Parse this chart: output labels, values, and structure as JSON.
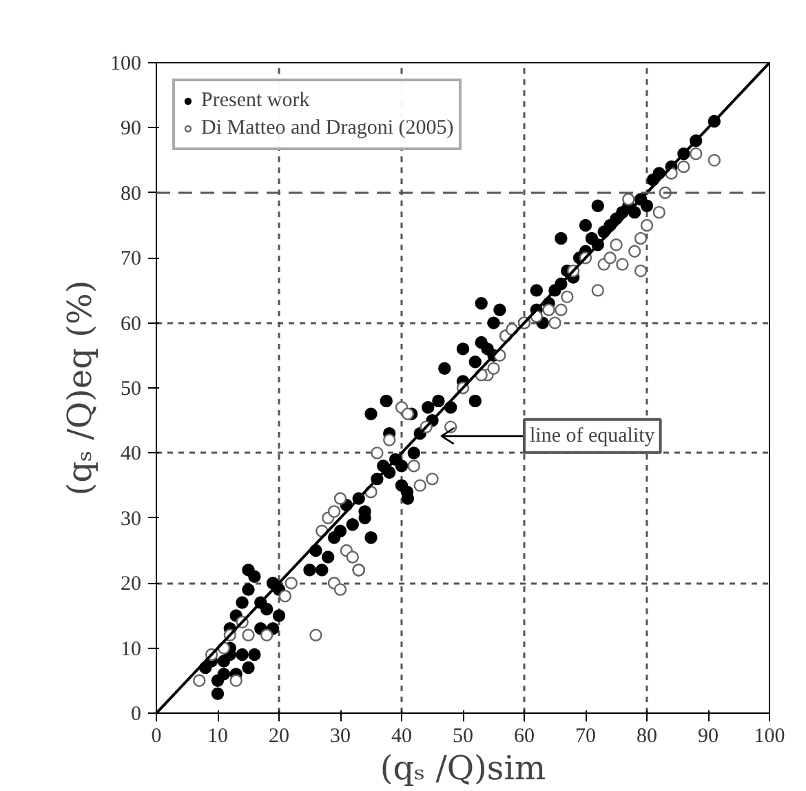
{
  "chart_data": {
    "type": "scatter",
    "xlabel": "(qₛ /Q)sim",
    "ylabel": "(qₛ /Q)eq (%)",
    "xlim": [
      0,
      100
    ],
    "ylim": [
      0,
      100
    ],
    "xticks": [
      0,
      10,
      20,
      30,
      40,
      50,
      60,
      70,
      80,
      90,
      100
    ],
    "yticks": [
      0,
      10,
      20,
      30,
      40,
      50,
      60,
      70,
      80,
      90,
      100
    ],
    "grid": true,
    "legend": "top left",
    "marker": "circle",
    "series": [
      {
        "name": "Present work",
        "color": "#000000",
        "x": [
          8,
          9,
          10,
          10,
          11,
          12,
          13,
          14,
          15,
          16,
          12,
          13,
          14,
          15,
          16,
          17,
          18,
          19,
          20,
          20,
          17,
          19,
          12,
          11,
          15,
          25,
          26,
          27,
          28,
          29,
          30,
          31,
          32,
          33,
          34,
          35,
          33,
          34,
          36,
          37,
          38,
          39,
          40,
          40,
          41,
          42,
          35,
          38,
          43,
          45,
          46,
          48,
          50,
          52,
          53,
          54,
          55,
          55,
          53,
          56,
          57,
          52,
          50,
          47,
          37.5,
          41.6,
          44.3,
          40.9,
          60,
          62,
          64,
          65,
          66,
          67,
          68,
          69,
          70,
          71,
          72,
          73,
          74,
          75,
          76,
          77,
          78,
          79,
          80,
          66,
          72,
          81,
          82,
          84,
          86,
          88,
          91,
          70,
          63,
          62
        ],
        "values": [
          7,
          8,
          5,
          3,
          6,
          9,
          6,
          9,
          7,
          9,
          13,
          15,
          17,
          19,
          21,
          17,
          16,
          20,
          19,
          15,
          13,
          13,
          10,
          8,
          22,
          22,
          25,
          22,
          24,
          27,
          28,
          32,
          29,
          33,
          31,
          27,
          22,
          30,
          36,
          38,
          37,
          39,
          38,
          35,
          33,
          40,
          46,
          43,
          43,
          45,
          48,
          47,
          51,
          54,
          57,
          56,
          55,
          60,
          63,
          62,
          58,
          48,
          56,
          53,
          48,
          46,
          47,
          34,
          60,
          62,
          63,
          65,
          66,
          68,
          67,
          70,
          71,
          73,
          72,
          74,
          75,
          76,
          77,
          78,
          77,
          79,
          78,
          73,
          78,
          82,
          83,
          84,
          86,
          88,
          91,
          75,
          60,
          65
        ]
      },
      {
        "name": "Di Matteo and Dragoni (2005)",
        "color": "#666666",
        "x": [
          7,
          9,
          11,
          12,
          14,
          15,
          13,
          18,
          21,
          22,
          26,
          27,
          28,
          29,
          30,
          31,
          32,
          33,
          29,
          30,
          35,
          36,
          38,
          40,
          41,
          42,
          43,
          44,
          45,
          48,
          50,
          54,
          55,
          56,
          57,
          53,
          58,
          60,
          62,
          64,
          65,
          66,
          67,
          68,
          70,
          72,
          73,
          74,
          75,
          76,
          78,
          79,
          80,
          82,
          83,
          84,
          86,
          88,
          91,
          77,
          79
        ],
        "values": [
          5,
          9,
          10,
          12,
          14,
          12,
          5,
          12,
          18,
          20,
          12,
          28,
          30,
          31,
          33,
          25,
          24,
          22,
          20,
          19,
          34,
          40,
          42,
          47,
          46,
          38,
          35,
          44,
          36,
          44,
          50,
          52,
          53,
          55,
          58,
          52,
          59,
          60,
          61,
          62,
          60,
          62,
          64,
          68,
          70,
          65,
          69,
          70,
          72,
          69,
          71,
          73,
          75,
          77,
          80,
          83,
          84,
          86,
          85,
          79,
          68
        ]
      },
      {
        "type": "line",
        "color": "#000000",
        "marker": "none",
        "x": [
          0,
          100
        ],
        "values": [
          0,
          100
        ]
      }
    ],
    "ref_lines": [
      {
        "axis": "y",
        "value": 80,
        "line_style": "dashed",
        "color": "#555555"
      }
    ],
    "annotations": [
      "line of equality"
    ]
  }
}
